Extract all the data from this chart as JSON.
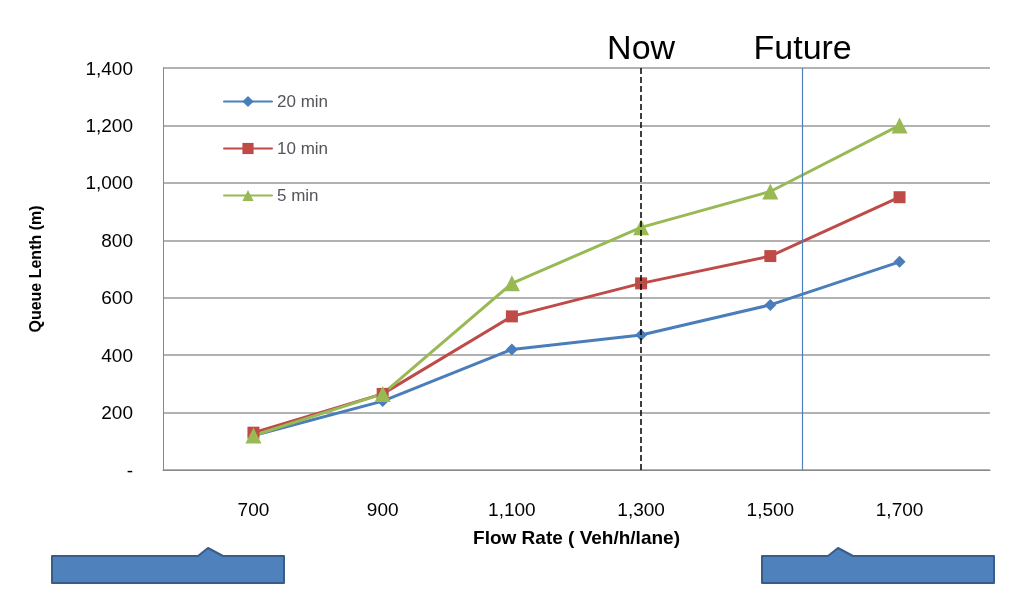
{
  "chart_data": {
    "type": "line",
    "xlabel": "Flow Rate ( Veh/h/lane)",
    "ylabel": "Queue Lenth (m)",
    "x": [
      700,
      900,
      1100,
      1300,
      1500,
      1700
    ],
    "xlim": [
      560,
      1840
    ],
    "xticks": [
      {
        "value": 700,
        "label": "700"
      },
      {
        "value": 900,
        "label": "900"
      },
      {
        "value": 1100,
        "label": "1,100"
      },
      {
        "value": 1300,
        "label": "1,300"
      },
      {
        "value": 1500,
        "label": "1,500"
      },
      {
        "value": 1700,
        "label": "1,700"
      }
    ],
    "ylim": [
      0,
      1400
    ],
    "yticks": [
      {
        "value": 0,
        "label": "-"
      },
      {
        "value": 200,
        "label": "200"
      },
      {
        "value": 400,
        "label": "400"
      },
      {
        "value": 600,
        "label": "600"
      },
      {
        "value": 800,
        "label": "800"
      },
      {
        "value": 1000,
        "label": "1,000"
      },
      {
        "value": 1200,
        "label": "1,200"
      },
      {
        "value": 1400,
        "label": "1,400"
      }
    ],
    "grid": "y",
    "legend": "top left",
    "series": [
      {
        "name": "20 min",
        "color": "#4a7ebb",
        "marker": "diamond",
        "values": [
          120,
          240,
          420,
          470,
          575,
          725
        ]
      },
      {
        "name": "10 min",
        "color": "#be4b48",
        "marker": "square",
        "values": [
          130,
          265,
          535,
          650,
          745,
          950
        ]
      },
      {
        "name": "5 min",
        "color": "#98b954",
        "marker": "triangle",
        "values": [
          120,
          265,
          650,
          845,
          970,
          1200
        ]
      }
    ],
    "ref_lines": [
      {
        "axis": "x",
        "value": 1300,
        "label": "Now",
        "color": "#000000",
        "line_style": "dashed"
      },
      {
        "axis": "x",
        "value": 1550,
        "label": "Future",
        "color": "#4f81bd",
        "line_style": "solid"
      }
    ]
  }
}
